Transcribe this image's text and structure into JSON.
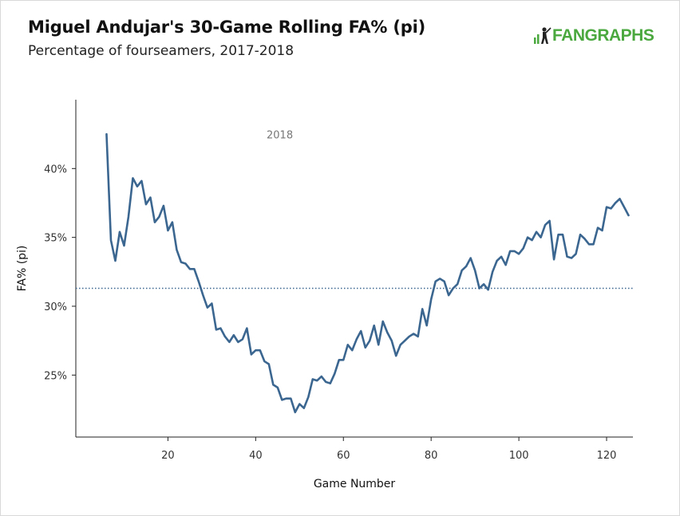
{
  "title": "Miguel Andujar's 30-Game Rolling FA% (pi)",
  "subtitle": "Percentage of fourseamers, 2017-2018",
  "logo": {
    "text": "FANGRAPHS",
    "icon": "fangraphs-batter-icon",
    "color": "#4aa83f"
  },
  "chart_data": {
    "type": "line",
    "title": "Miguel Andujar's 30-Game Rolling FA% (pi)",
    "subtitle": "Percentage of fourseamers, 2017-2018",
    "xlabel": "Game Number",
    "ylabel": "FA% (pi)",
    "xlim": [
      -1,
      126
    ],
    "ylim": [
      20.5,
      45.0
    ],
    "xticks": [
      20,
      40,
      60,
      80,
      100,
      120
    ],
    "xtick_labels": [
      "20",
      "40",
      "60",
      "80",
      "100",
      "120"
    ],
    "yticks": [
      25,
      30,
      35,
      40
    ],
    "ytick_labels": [
      "25%",
      "30%",
      "35%",
      "40%"
    ],
    "grid": false,
    "line_color": "#3b6690",
    "reference_line": {
      "y": 31.3,
      "style": "dotted",
      "color": "#3b6690"
    },
    "annotations": [
      {
        "text": "2018",
        "x": 45.5,
        "y": 42.2
      }
    ],
    "series": [
      {
        "x": [
          6,
          7,
          8,
          9,
          10,
          11,
          12,
          13,
          14,
          15,
          16,
          17,
          18,
          19,
          20,
          21,
          22,
          23,
          24,
          25,
          26,
          27,
          28,
          29,
          30,
          31,
          32,
          33,
          34,
          35,
          36,
          37,
          38,
          39,
          40,
          41,
          42,
          43,
          44,
          45,
          46,
          47,
          48,
          49,
          50,
          51,
          52,
          53,
          54,
          55,
          56,
          57,
          58,
          59,
          60,
          61,
          62,
          63,
          64,
          65,
          66,
          67,
          68,
          69,
          70,
          71,
          72,
          73,
          74,
          75,
          76,
          77,
          78,
          79,
          80,
          81,
          82,
          83,
          84,
          85,
          86,
          87,
          88,
          89,
          90,
          91,
          92,
          93,
          94,
          95,
          96,
          97,
          98,
          99,
          100,
          101,
          102,
          103,
          104,
          105,
          106,
          107,
          108,
          109,
          110,
          111,
          112,
          113,
          114,
          115,
          116,
          117,
          118,
          119,
          120,
          121,
          122,
          123,
          124,
          125
        ],
        "y": [
          42.5,
          34.8,
          33.3,
          35.4,
          34.4,
          36.5,
          39.3,
          38.7,
          39.1,
          37.4,
          37.9,
          36.1,
          36.5,
          37.3,
          35.5,
          36.1,
          34.1,
          33.2,
          33.1,
          32.7,
          32.7,
          31.8,
          30.8,
          29.9,
          30.2,
          28.3,
          28.4,
          27.8,
          27.4,
          27.9,
          27.4,
          27.6,
          28.4,
          26.5,
          26.8,
          26.8,
          26.0,
          25.8,
          24.3,
          24.1,
          23.2,
          23.3,
          23.3,
          22.3,
          22.9,
          22.6,
          23.4,
          24.7,
          24.6,
          24.9,
          24.5,
          24.4,
          25.1,
          26.1,
          26.1,
          27.2,
          26.8,
          27.6,
          28.2,
          27.0,
          27.5,
          28.6,
          27.2,
          28.9,
          28.1,
          27.5,
          26.4,
          27.2,
          27.5,
          27.8,
          28.0,
          27.8,
          29.8,
          28.6,
          30.5,
          31.8,
          32.0,
          31.8,
          30.8,
          31.3,
          31.6,
          32.6,
          32.9,
          33.5,
          32.6,
          31.3,
          31.6,
          31.2,
          32.5,
          33.3,
          33.6,
          33.0,
          34.0,
          34.0,
          33.8,
          34.2,
          35.0,
          34.8,
          35.4,
          35.0,
          35.9,
          36.2,
          33.4,
          35.2,
          35.2,
          33.6,
          33.5,
          33.8,
          35.2,
          34.9,
          34.5,
          34.5,
          35.7,
          35.5,
          37.2,
          37.1,
          37.5,
          37.8,
          37.2,
          36.6
        ]
      }
    ]
  }
}
